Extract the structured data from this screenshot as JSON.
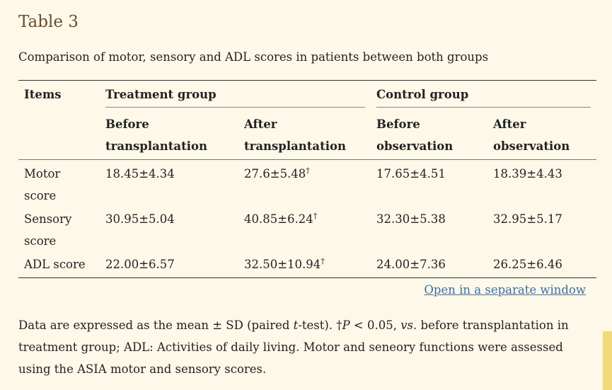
{
  "title": "Table 3",
  "caption": "Comparison of motor, sensory and ADL scores in patients between both groups",
  "table": {
    "items_header": "Items",
    "groups": [
      {
        "label": "Treatment group"
      },
      {
        "label": "Control group"
      }
    ],
    "subheaders": [
      {
        "line1": "Before",
        "line2": "transplantation"
      },
      {
        "line1": "After",
        "line2": "transplantation"
      },
      {
        "line1": "Before",
        "line2": "observation"
      },
      {
        "line1": "After",
        "line2": "observation"
      }
    ],
    "dagger": "†",
    "rows": [
      {
        "label": "Motor score",
        "values": [
          "18.45±4.34",
          "27.6±5.48",
          "17.65±4.51",
          "18.39±4.43"
        ]
      },
      {
        "label": "Sensory score",
        "values": [
          "30.95±5.04",
          "40.85±6.24",
          "32.30±5.38",
          "32.95±5.17"
        ]
      },
      {
        "label": "ADL score",
        "values": [
          "22.00±6.57",
          "32.50±10.94",
          "24.00±7.36",
          "26.25±6.46"
        ]
      }
    ]
  },
  "open_link": "Open in a separate window",
  "footnote": {
    "part1": "Data are expressed as the mean ± SD (paired ",
    "t": "t",
    "part2": "-test). †",
    "p": "P",
    "part3": " < 0.05, ",
    "vs": "vs",
    "part4": ". before transplantation in treatment group; ADL: Activities of daily living. Motor and seneory functions were assessed using the ASIA motor and sensory scores."
  }
}
